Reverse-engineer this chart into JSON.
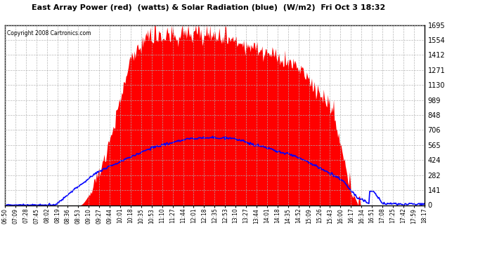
{
  "title": "East Array Power (red)  (watts) & Solar Radiation (blue)  (W/m2)  Fri Oct 3 18:32",
  "copyright": "Copyright 2008 Cartronics.com",
  "background_color": "#ffffff",
  "plot_bg_color": "#ffffff",
  "yticks": [
    0.0,
    141.3,
    282.5,
    423.8,
    565.0,
    706.3,
    847.5,
    988.8,
    1130.0,
    1271.3,
    1412.5,
    1553.8,
    1695.1
  ],
  "ymax": 1695.1,
  "ymin": 0.0,
  "red_color": "#ff0000",
  "blue_color": "#0000ff",
  "grid_color": "#b0b0b0",
  "x_labels": [
    "06:50",
    "07:09",
    "07:28",
    "07:45",
    "08:02",
    "08:19",
    "08:36",
    "08:53",
    "09:10",
    "09:27",
    "09:44",
    "10:01",
    "10:18",
    "10:35",
    "10:53",
    "11:10",
    "11:27",
    "11:44",
    "12:01",
    "12:18",
    "12:35",
    "12:53",
    "13:10",
    "13:27",
    "13:44",
    "14:01",
    "14:18",
    "14:35",
    "14:52",
    "15:09",
    "15:26",
    "15:43",
    "16:00",
    "16:17",
    "16:34",
    "16:51",
    "17:08",
    "17:25",
    "17:42",
    "17:59",
    "18:17"
  ],
  "n_points": 500,
  "red_peak": 1650,
  "blue_peak": 635
}
